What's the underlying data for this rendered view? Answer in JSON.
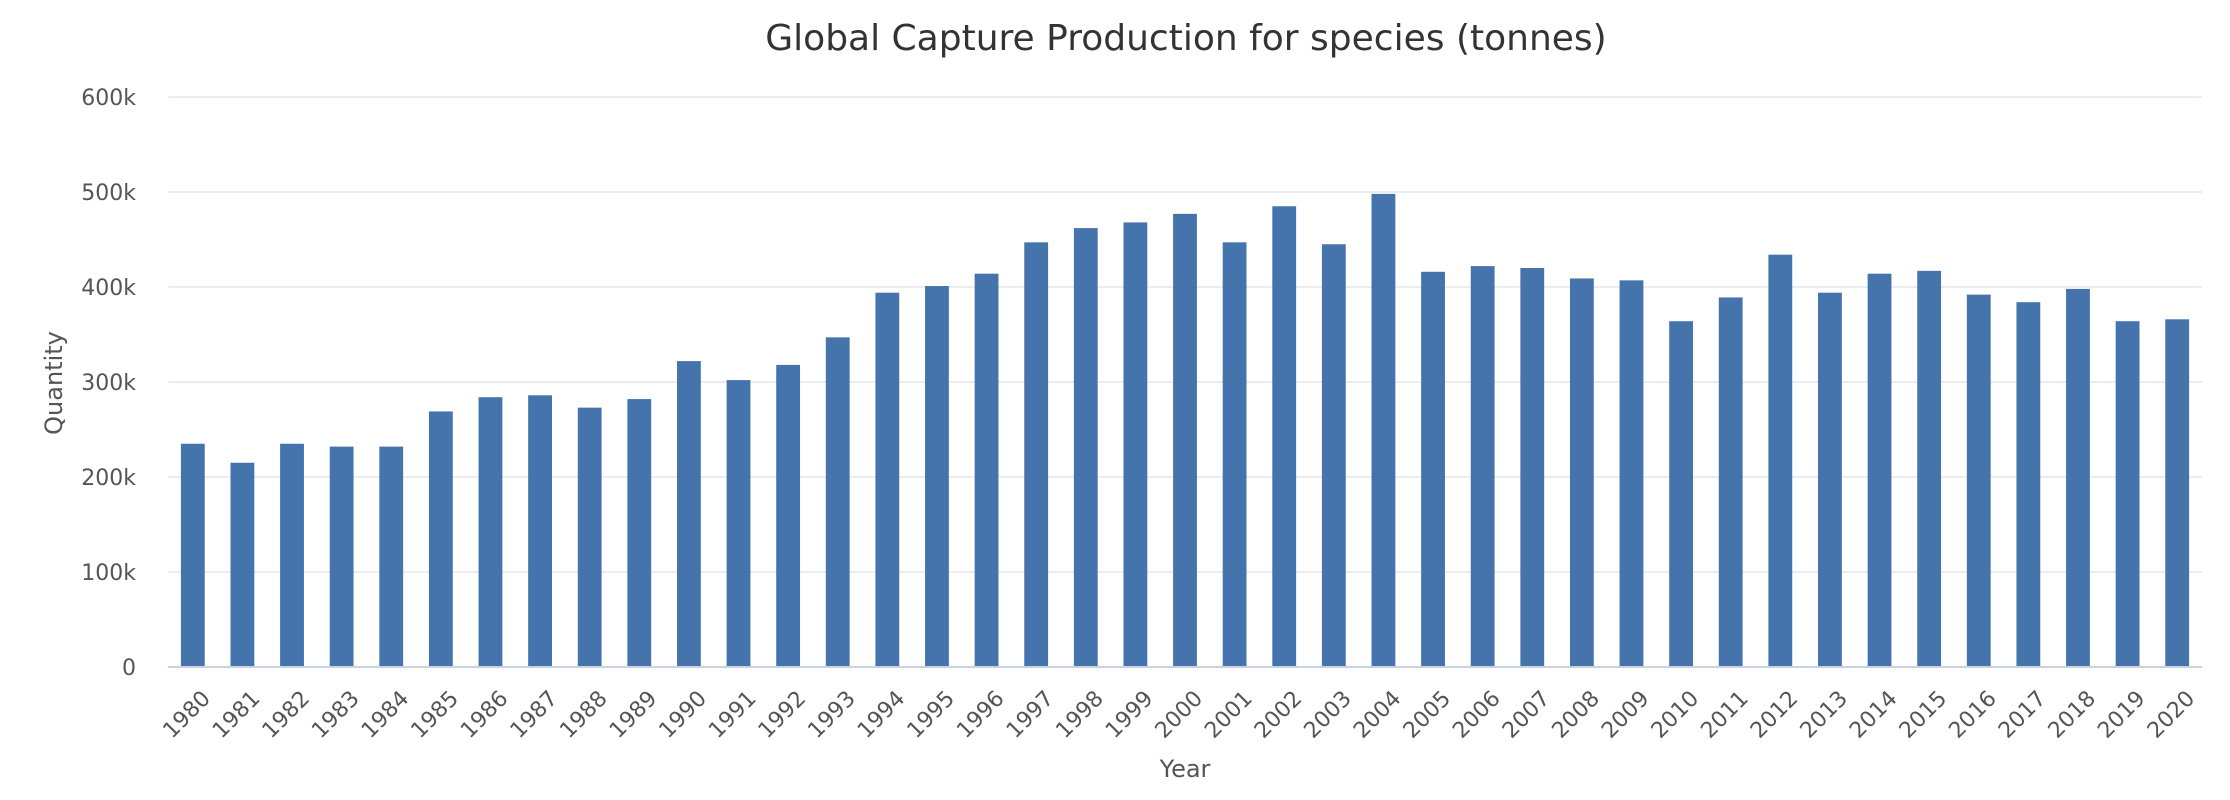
{
  "chart_data": {
    "type": "bar",
    "title": "Global Capture Production for species (tonnes)",
    "xlabel": "Year",
    "ylabel": "Quantity",
    "ylim": [
      0,
      600000
    ],
    "yticks": [
      {
        "value": 0,
        "label": "0"
      },
      {
        "value": 100000,
        "label": "100k"
      },
      {
        "value": 200000,
        "label": "200k"
      },
      {
        "value": 300000,
        "label": "300k"
      },
      {
        "value": 400000,
        "label": "400k"
      },
      {
        "value": 500000,
        "label": "500k"
      },
      {
        "value": 600000,
        "label": "600k"
      }
    ],
    "grid": true,
    "legend": "none",
    "bar_color": "#4474ab",
    "categories": [
      "1980",
      "1981",
      "1982",
      "1983",
      "1984",
      "1985",
      "1986",
      "1987",
      "1988",
      "1989",
      "1990",
      "1991",
      "1992",
      "1993",
      "1994",
      "1995",
      "1996",
      "1997",
      "1998",
      "1999",
      "2000",
      "2001",
      "2002",
      "2003",
      "2004",
      "2005",
      "2006",
      "2007",
      "2008",
      "2009",
      "2010",
      "2011",
      "2012",
      "2013",
      "2014",
      "2015",
      "2016",
      "2017",
      "2018",
      "2019",
      "2020"
    ],
    "values": [
      235000,
      215000,
      235000,
      232000,
      232000,
      269000,
      284000,
      286000,
      273000,
      282000,
      322000,
      302000,
      318000,
      347000,
      394000,
      401000,
      414000,
      447000,
      462000,
      468000,
      477000,
      447000,
      485000,
      445000,
      498000,
      416000,
      422000,
      420000,
      409000,
      407000,
      364000,
      389000,
      434000,
      394000,
      414000,
      417000,
      392000,
      384000,
      398000,
      364000,
      366000
    ]
  }
}
